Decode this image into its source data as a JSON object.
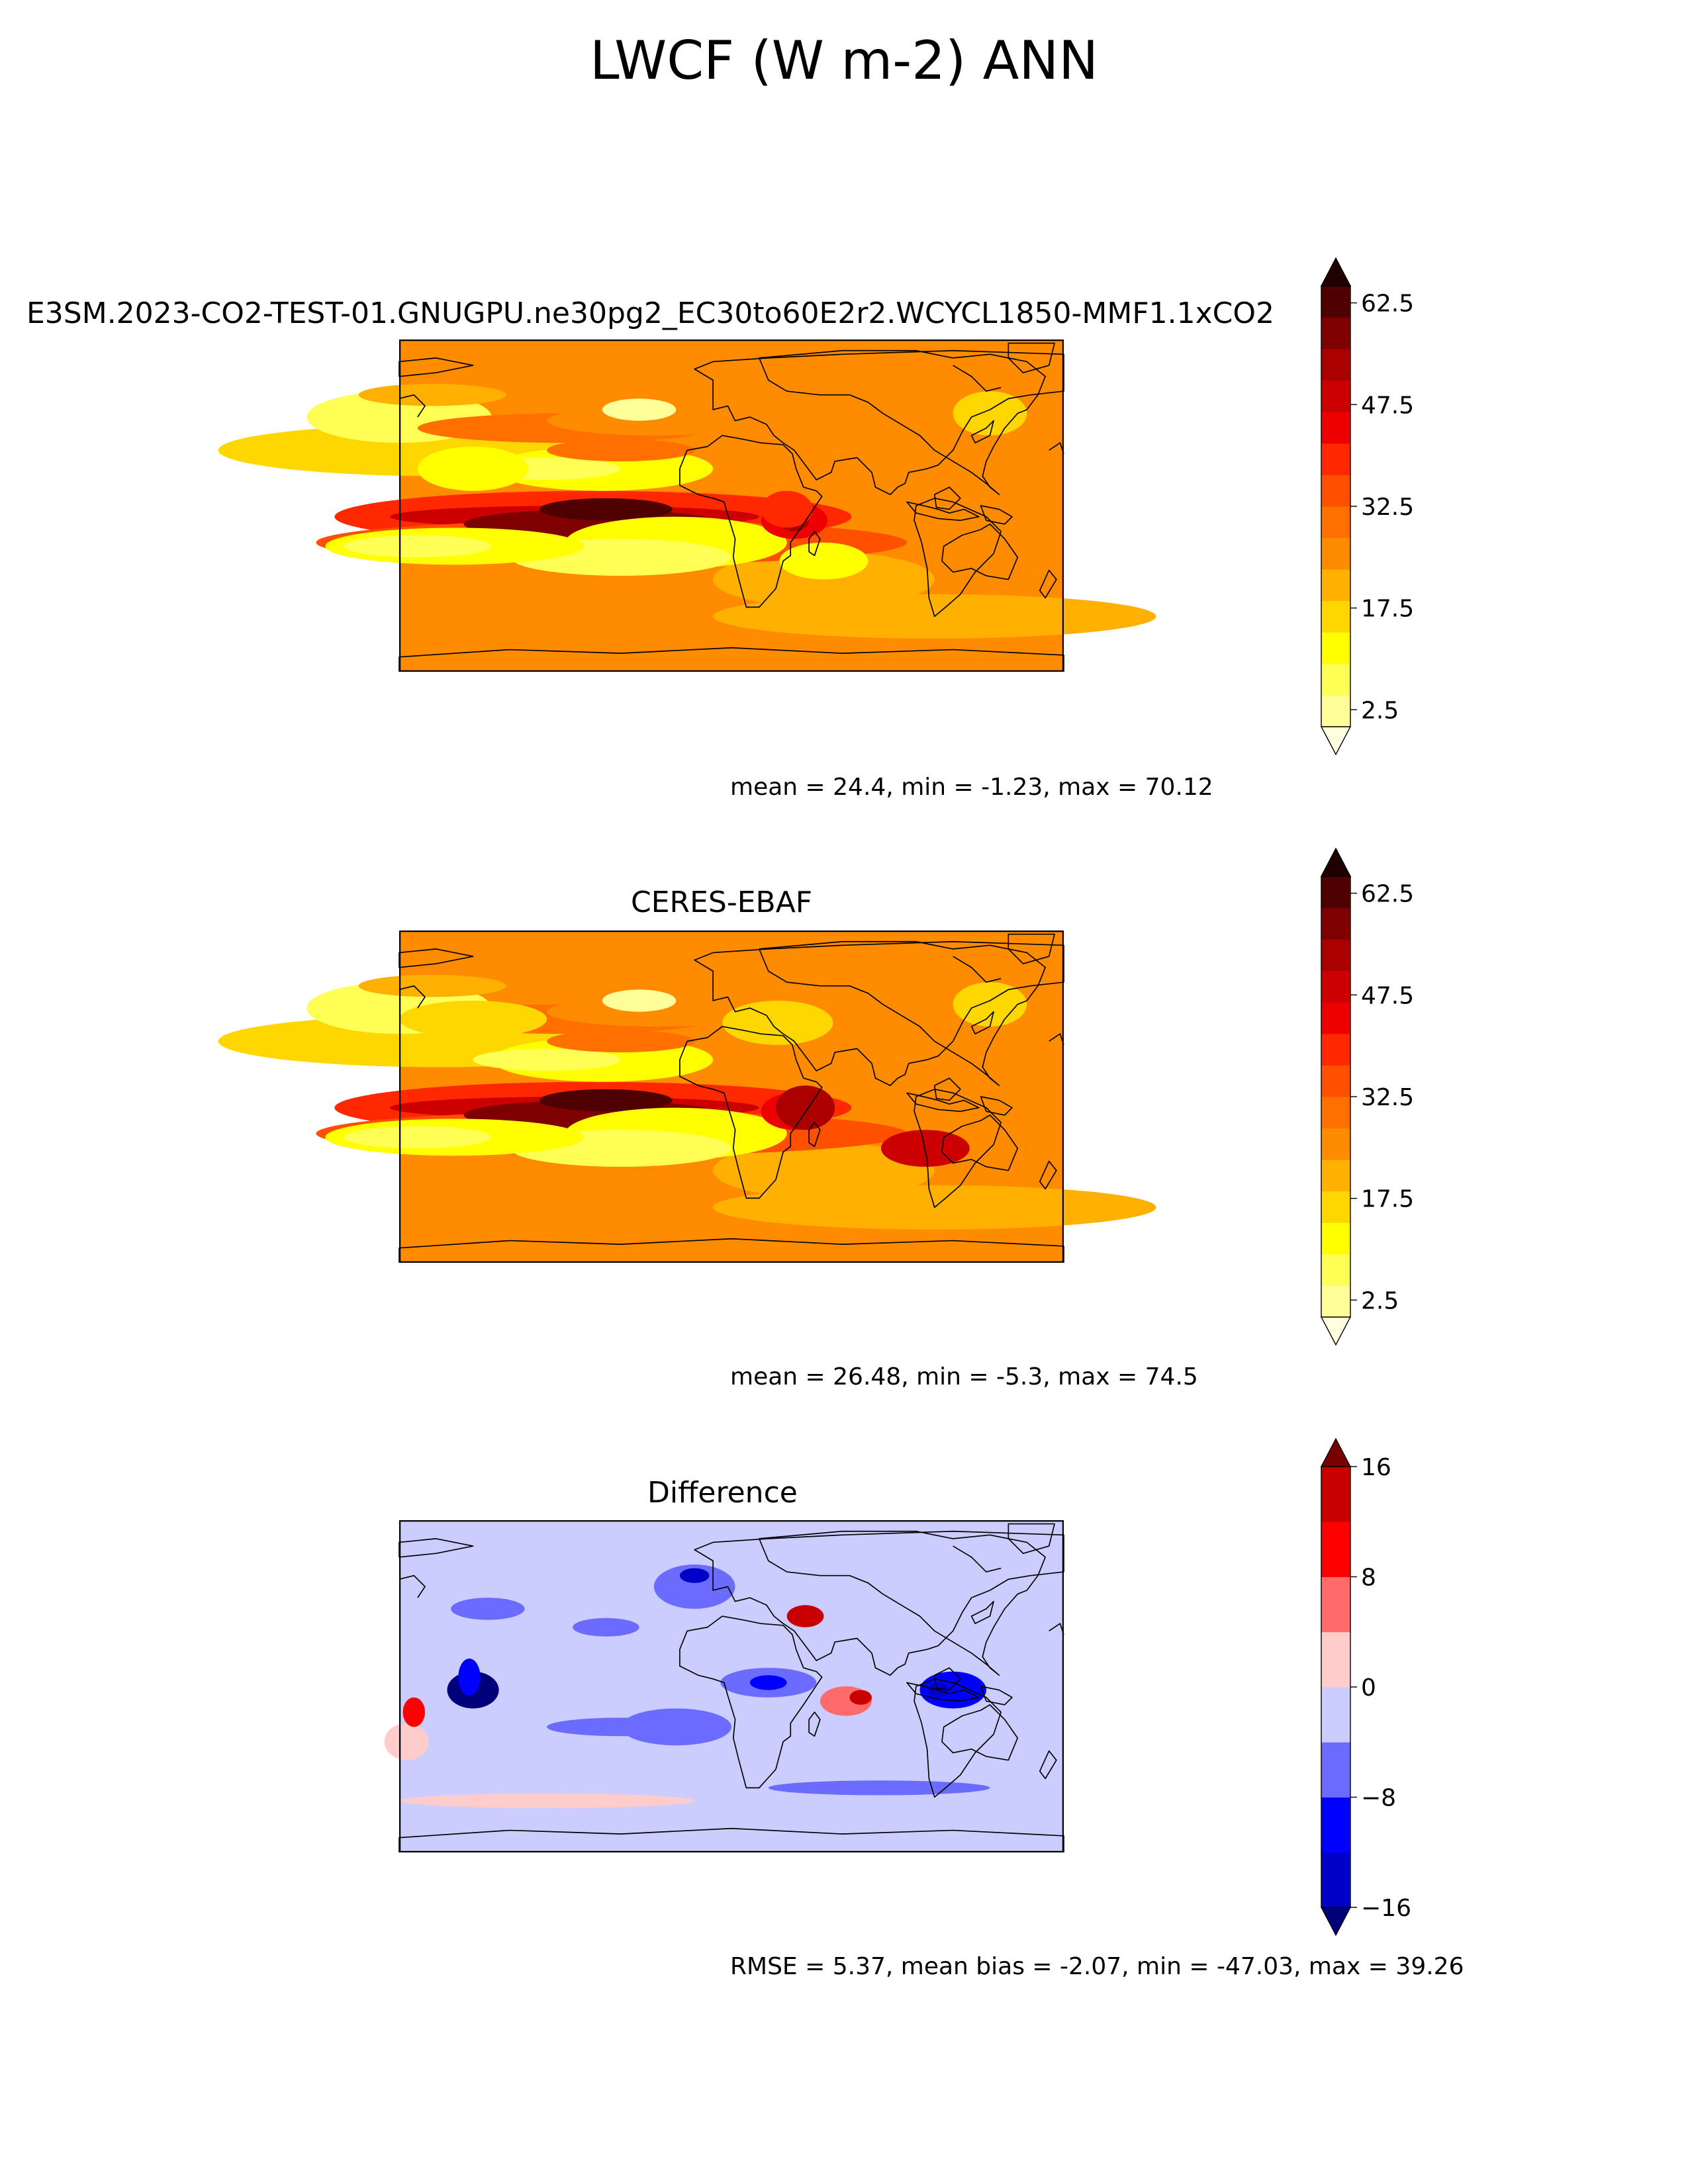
{
  "figure": {
    "title": "LWCF (W m-2) ANN"
  },
  "chart_data": [
    {
      "type": "heatmap",
      "title": "E3SM.2023-CO2-TEST-01.GNUGPU.ne30pg2_EC30to60E2r2.WCYCL1850-MMF1.1xCO2",
      "stats": "mean = 24.4, min = -1.23, max = 70.12",
      "projection": "global lat-lon map with coastlines, centered on 180°",
      "colorbar": {
        "ticks": [
          "2.5",
          "17.5",
          "32.5",
          "47.5",
          "62.5"
        ],
        "tick_values": [
          2.5,
          17.5,
          32.5,
          47.5,
          62.5
        ],
        "levels": [
          -5,
          0,
          5,
          10,
          15,
          20,
          25,
          30,
          35,
          40,
          45,
          50,
          55,
          60,
          65,
          70
        ],
        "colors": [
          "#ffffe0",
          "#ffff99",
          "#ffff55",
          "#ffff00",
          "#ffd700",
          "#ffb000",
          "#ff8c00",
          "#ff7000",
          "#ff5000",
          "#ff2800",
          "#ee0000",
          "#cc0000",
          "#aa0000",
          "#7f0000",
          "#4f0000",
          "#200000"
        ],
        "extend": "both"
      }
    },
    {
      "type": "heatmap",
      "title": "CERES-EBAF",
      "stats": "mean = 26.48, min = -5.3, max = 74.5",
      "projection": "global lat-lon map with coastlines, centered on 180°",
      "colorbar": {
        "ticks": [
          "2.5",
          "17.5",
          "32.5",
          "47.5",
          "62.5"
        ],
        "tick_values": [
          2.5,
          17.5,
          32.5,
          47.5,
          62.5
        ],
        "levels": [
          -5,
          0,
          5,
          10,
          15,
          20,
          25,
          30,
          35,
          40,
          45,
          50,
          55,
          60,
          65,
          70
        ],
        "colors": [
          "#ffffe0",
          "#ffff99",
          "#ffff55",
          "#ffff00",
          "#ffd700",
          "#ffb000",
          "#ff8c00",
          "#ff7000",
          "#ff5000",
          "#ff2800",
          "#ee0000",
          "#cc0000",
          "#aa0000",
          "#7f0000",
          "#4f0000",
          "#200000"
        ],
        "extend": "both"
      }
    },
    {
      "type": "heatmap",
      "title": "Difference",
      "stats": "RMSE = 5.37, mean bias = -2.07, min = -47.03, max = 39.26",
      "projection": "global lat-lon map with coastlines, centered on 180°",
      "colorbar": {
        "ticks": [
          "−16",
          "−8",
          "0",
          "8",
          "16"
        ],
        "tick_values": [
          -16,
          -8,
          0,
          8,
          16
        ],
        "levels": [
          -20,
          -16,
          -12,
          -8,
          -4,
          0,
          4,
          8,
          12,
          16,
          20
        ],
        "colors": [
          "#00007a",
          "#0000c8",
          "#0000ff",
          "#6b6bff",
          "#cccdff",
          "#ffcccc",
          "#ff6b6b",
          "#ff0000",
          "#c80000",
          "#7a0000"
        ],
        "extend": "both"
      }
    }
  ]
}
